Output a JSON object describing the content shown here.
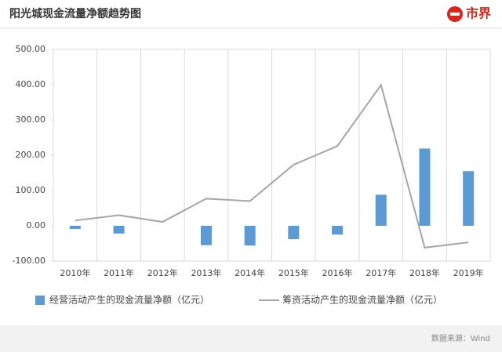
{
  "header": {
    "logo": "市界"
  },
  "chart_data": {
    "type": "bar",
    "title": "阳光城现金流量净额趋势图",
    "source": "数据来源：Wind",
    "categories": [
      "2010年",
      "2011年",
      "2012年",
      "2013年",
      "2014年",
      "2015年",
      "2016年",
      "2017年",
      "2018年",
      "2019年"
    ],
    "series": [
      {
        "name": "经营活动产生的现金流量净额（亿元）",
        "type": "bar",
        "color": "#5b9bd5",
        "values": [
          -9,
          -22,
          0,
          -55,
          -56,
          -38,
          -25,
          88,
          219,
          155
        ]
      },
      {
        "name": "筹资活动产生的现金流量净额（亿元）",
        "type": "line",
        "color": "#a5a5a5",
        "values": [
          15,
          30,
          11,
          77,
          70,
          173,
          226,
          399,
          -62,
          -47
        ]
      }
    ],
    "ylim": [
      -100,
      500
    ],
    "yticks": [
      {
        "value": -100,
        "label": "-100.00"
      },
      {
        "value": 0,
        "label": "0.00"
      },
      {
        "value": 100,
        "label": "100.00"
      },
      {
        "value": 200,
        "label": "200.00"
      },
      {
        "value": 300,
        "label": "300.00"
      },
      {
        "value": 400,
        "label": "400.00"
      },
      {
        "value": 500,
        "label": "500.00"
      }
    ],
    "grid": "x"
  }
}
